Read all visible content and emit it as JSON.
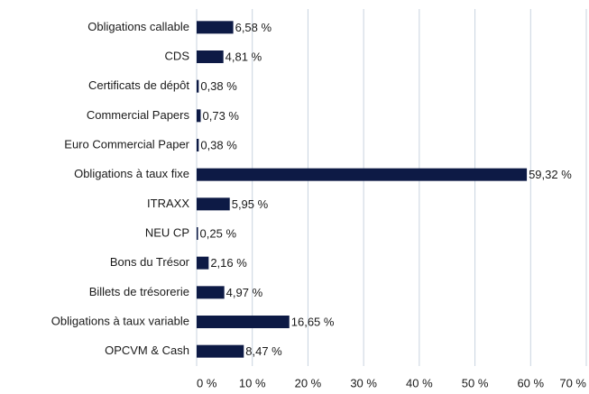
{
  "chart_data": {
    "type": "bar",
    "orientation": "horizontal",
    "categories": [
      "Obligations callable",
      "CDS",
      "Certificats de dépôt",
      "Commercial Papers",
      "Euro Commercial Paper",
      "Obligations à taux fixe",
      "ITRAXX",
      "NEU CP",
      "Bons du Trésor",
      "Billets de trésorerie",
      "Obligations à taux variable",
      "OPCVM & Cash"
    ],
    "values": [
      6.58,
      4.81,
      0.38,
      0.73,
      0.38,
      59.32,
      5.95,
      0.25,
      2.16,
      4.97,
      16.65,
      8.47
    ],
    "value_labels": [
      "6,58 %",
      "4,81 %",
      "0,38 %",
      "0,73 %",
      "0,38 %",
      "59,32 %",
      "5,95 %",
      "0,25 %",
      "2,16 %",
      "4,97 %",
      "16,65 %",
      "8,47 %"
    ],
    "color": "#0d1a45",
    "xlim": [
      0,
      70
    ],
    "xticks": [
      {
        "value": 0,
        "label": "0 %"
      },
      {
        "value": 10,
        "label": "10 %"
      },
      {
        "value": 20,
        "label": "20 %"
      },
      {
        "value": 30,
        "label": "30 %"
      },
      {
        "value": 40,
        "label": "40 %"
      },
      {
        "value": 50,
        "label": "50 %"
      },
      {
        "value": 60,
        "label": "60 %"
      },
      {
        "value": 70,
        "label": "70 %"
      }
    ],
    "grid": true
  }
}
